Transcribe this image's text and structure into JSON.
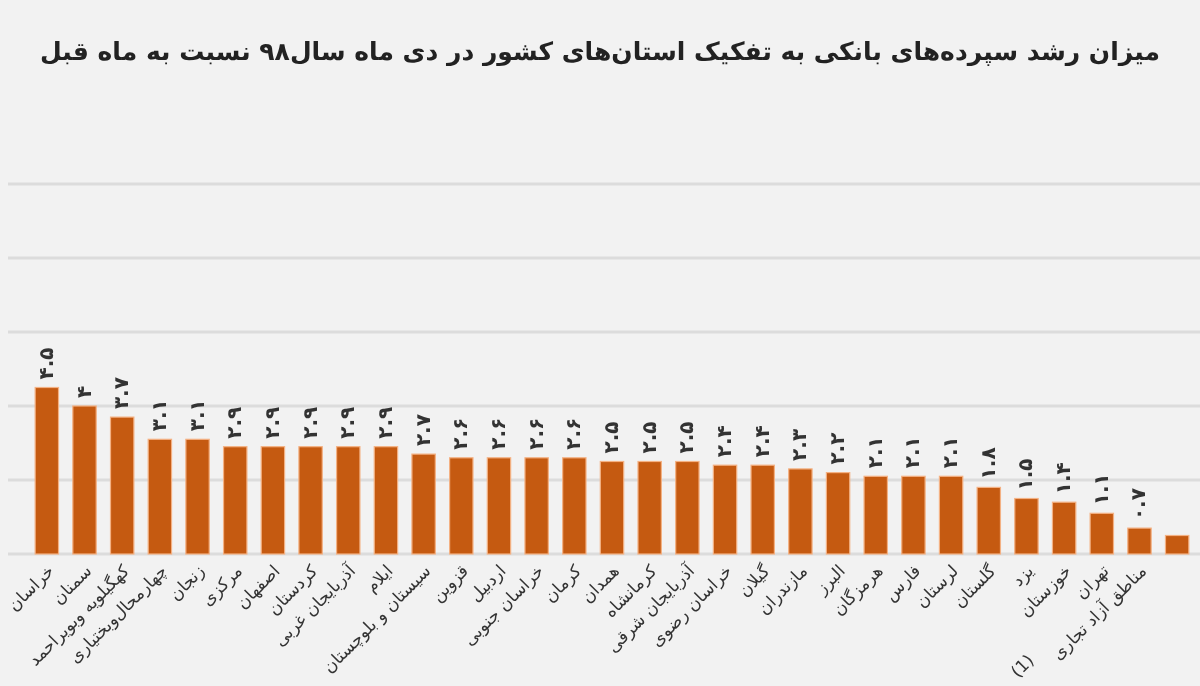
{
  "chart_data": {
    "type": "bar",
    "title": "میزان رشد سپرده‌های بانکی به تفکیک استان‌های کشور در دی ماه سال۹۸ نسبت به ماه قبل",
    "categories": [
      "خراسان",
      "سمنان",
      "کهگیلویه وبویراحمد",
      "چهارمحال‌وبختیاری",
      "زنجان",
      "مرکزی",
      "اصفهان",
      "کردستان",
      "آذربایجان غربی",
      "ایلام",
      "سیستان و بلوچستان",
      "قزوین",
      "اردبیل",
      "خراسان جنوبی",
      "کرمان",
      "همدان",
      "کرمانشاه",
      "آذربایجان شرقی",
      "خراسان رضوی",
      "گیلان",
      "مازندران",
      "البرز",
      "هرمزگان",
      "فارس",
      "لرستان",
      "گلستان",
      "یزد",
      "خوزستان",
      "تهران",
      "مناطق آزاد تجاری",
      null
    ],
    "values": [
      4.5,
      4,
      3.7,
      3.1,
      3.1,
      2.9,
      2.9,
      2.9,
      2.9,
      2.9,
      2.7,
      2.6,
      2.6,
      2.6,
      2.6,
      2.5,
      2.5,
      2.5,
      2.4,
      2.4,
      2.3,
      2.2,
      2.1,
      2.1,
      2.1,
      1.8,
      1.5,
      1.4,
      1.1,
      0.7,
      0.5
    ],
    "value_labels": [
      "۴.۵",
      "۴",
      "۳.۷",
      "۳.۱",
      "۳.۱",
      "۲.۹",
      "۲.۹",
      "۲.۹",
      "۲.۹",
      "۲.۹",
      "۲.۷",
      "۲.۶",
      "۲.۶",
      "۲.۶",
      "۲.۶",
      "۲.۵",
      "۲.۵",
      "۲.۵",
      "۲.۴",
      "۲.۴",
      "۲.۳",
      "۲.۲",
      "۲.۱",
      "۲.۱",
      "۲.۱",
      "۱.۸",
      "۱.۵",
      "۱.۴",
      "۱.۱",
      "۰.۷",
      null
    ],
    "color": "#c55a11",
    "ylim": [
      0,
      10
    ],
    "yticks": [
      {
        "value": 0,
        "label": null
      },
      {
        "value": 2,
        "label": null
      },
      {
        "value": 4,
        "label": null
      },
      {
        "value": 6,
        "label": null
      },
      {
        "value": 8,
        "label": null
      },
      {
        "value": 10,
        "label": null
      }
    ],
    "grid": "y",
    "annotations": [
      "(1)"
    ]
  }
}
